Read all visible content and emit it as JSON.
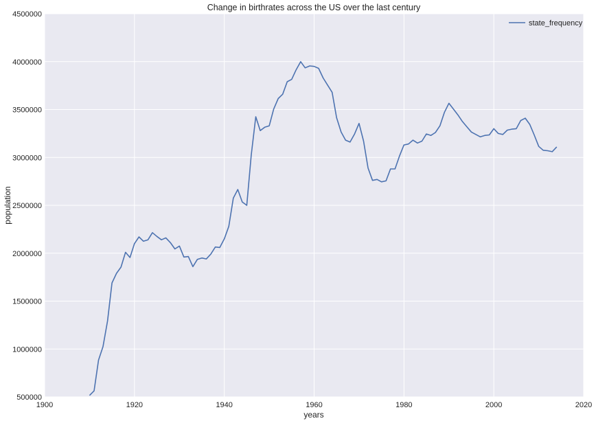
{
  "colors": {
    "plot_background": "#e9e9f1",
    "grid": "#ffffff",
    "line": "#4c72b0"
  },
  "chart_data": {
    "type": "line",
    "title": "Change in birthrates across the US over the last century",
    "xlabel": "years",
    "ylabel": "population",
    "xlim": [
      1900,
      2020
    ],
    "ylim": [
      500000,
      4500000
    ],
    "xticks": [
      1900,
      1920,
      1940,
      1960,
      1980,
      2000,
      2020
    ],
    "yticks": [
      500000,
      1000000,
      1500000,
      2000000,
      2500000,
      3000000,
      3500000,
      4000000,
      4500000
    ],
    "grid": true,
    "legend_position": "top-right",
    "series": [
      {
        "name": "state_frequency",
        "x": [
          1910,
          1911,
          1912,
          1913,
          1914,
          1915,
          1916,
          1917,
          1918,
          1919,
          1920,
          1921,
          1922,
          1923,
          1924,
          1925,
          1926,
          1927,
          1928,
          1929,
          1930,
          1931,
          1932,
          1933,
          1934,
          1935,
          1936,
          1937,
          1938,
          1939,
          1940,
          1941,
          1942,
          1943,
          1944,
          1945,
          1946,
          1947,
          1948,
          1949,
          1950,
          1951,
          1952,
          1953,
          1954,
          1955,
          1956,
          1957,
          1958,
          1959,
          1960,
          1961,
          1962,
          1963,
          1964,
          1965,
          1966,
          1967,
          1968,
          1969,
          1970,
          1971,
          1972,
          1973,
          1974,
          1975,
          1976,
          1977,
          1978,
          1979,
          1980,
          1981,
          1982,
          1983,
          1984,
          1985,
          1986,
          1987,
          1988,
          1989,
          1990,
          1991,
          1992,
          1993,
          1994,
          1995,
          1996,
          1997,
          1998,
          1999,
          2000,
          2001,
          2002,
          2003,
          2004,
          2005,
          2006,
          2007,
          2008,
          2009,
          2010,
          2011,
          2012,
          2013,
          2014
        ],
        "values": [
          516000,
          563000,
          884000,
          1025000,
          1292000,
          1690000,
          1790000,
          1855000,
          2010000,
          1955000,
          2100000,
          2170000,
          2125000,
          2140000,
          2215000,
          2175000,
          2140000,
          2160000,
          2110000,
          2045000,
          2075000,
          1960000,
          1965000,
          1860000,
          1935000,
          1950000,
          1940000,
          1990000,
          2065000,
          2060000,
          2150000,
          2280000,
          2575000,
          2665000,
          2535000,
          2500000,
          3025000,
          3425000,
          3280000,
          3315000,
          3330000,
          3505000,
          3615000,
          3660000,
          3790000,
          3815000,
          3915000,
          4000000,
          3935000,
          3955000,
          3950000,
          3930000,
          3830000,
          3755000,
          3680000,
          3415000,
          3265000,
          3180000,
          3160000,
          3245000,
          3355000,
          3170000,
          2890000,
          2760000,
          2770000,
          2745000,
          2755000,
          2880000,
          2880000,
          3015000,
          3130000,
          3140000,
          3180000,
          3150000,
          3170000,
          3245000,
          3230000,
          3260000,
          3330000,
          3470000,
          3565000,
          3505000,
          3445000,
          3375000,
          3320000,
          3265000,
          3240000,
          3215000,
          3230000,
          3235000,
          3300000,
          3250000,
          3240000,
          3285000,
          3295000,
          3300000,
          3385000,
          3410000,
          3345000,
          3235000,
          3115000,
          3075000,
          3070000,
          3060000,
          3110000
        ]
      }
    ]
  }
}
